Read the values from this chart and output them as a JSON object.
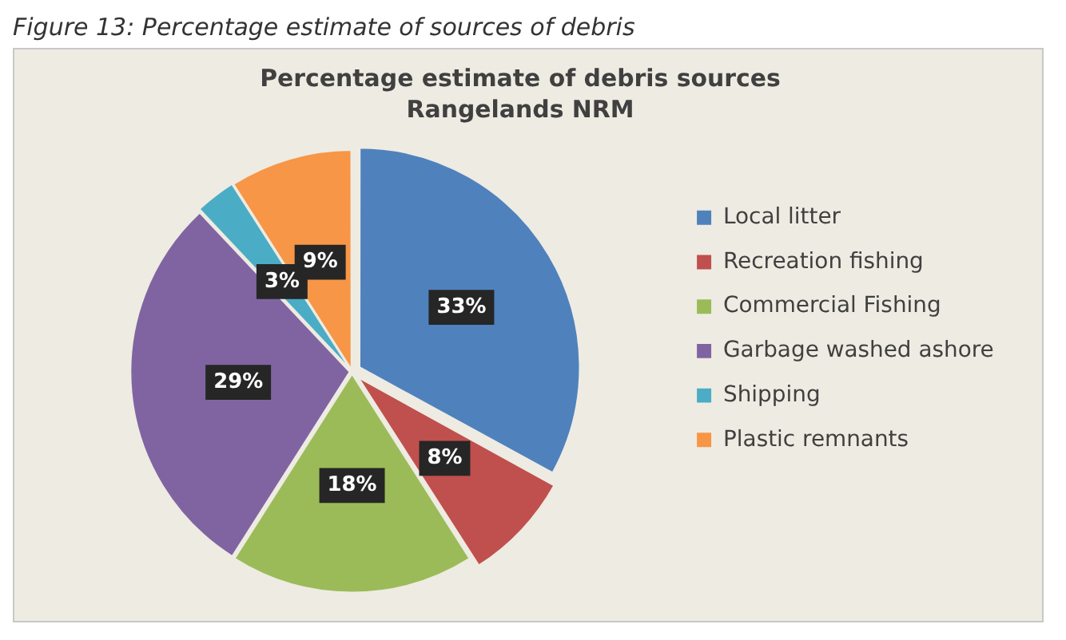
{
  "chart_data": {
    "type": "pie",
    "title": "Percentage estimate of debris sources",
    "subtitle": "Rangelands NRM",
    "annotations": [
      "Figure 13: Percentage estimate of sources of debris"
    ],
    "categories": [
      "Local litter",
      "Recreation fishing",
      "Commercial Fishing",
      "Garbage washed ashore",
      "Shipping",
      "Plastic remnants"
    ],
    "values": [
      33,
      8,
      18,
      29,
      3,
      9
    ],
    "value_labels": [
      "33%",
      "8%",
      "18%",
      "29%",
      "3%",
      "9%"
    ],
    "colors": [
      "#4f81bd",
      "#c0504d",
      "#9bbb59",
      "#8064a2",
      "#4bacc6",
      "#f79646"
    ],
    "legend": "right"
  }
}
